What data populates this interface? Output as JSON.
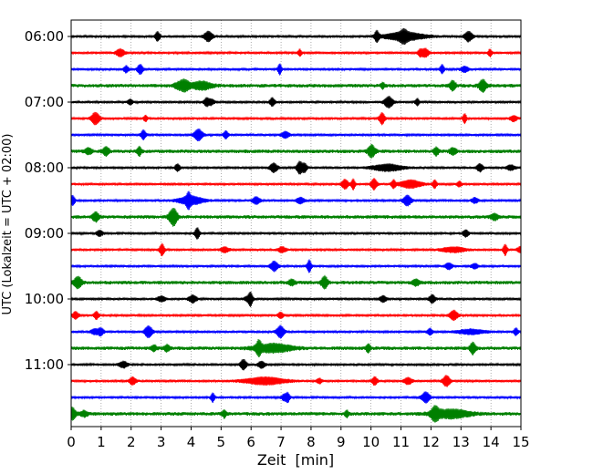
{
  "chart_data": {
    "type": "line",
    "title": "",
    "xlabel": "Zeit  [min]",
    "ylabel": "UTC (Lokalzeit = UTC + 02:00)",
    "xlim": [
      0,
      15
    ],
    "x_ticks": [
      0,
      1,
      2,
      3,
      4,
      5,
      6,
      7,
      8,
      9,
      10,
      11,
      12,
      13,
      14,
      15
    ],
    "x_grid": true,
    "y_tick_labels": [
      "06:00",
      "07:00",
      "08:00",
      "09:00",
      "10:00",
      "11:00"
    ],
    "trace_interval_min": 15,
    "color_cycle": [
      "#000000",
      "#ff0000",
      "#0000ff",
      "#008000"
    ],
    "traces": [
      {
        "start": "06:00",
        "color": "#000000"
      },
      {
        "start": "06:15",
        "color": "#ff0000"
      },
      {
        "start": "06:30",
        "color": "#0000ff"
      },
      {
        "start": "06:45",
        "color": "#008000"
      },
      {
        "start": "07:00",
        "color": "#000000"
      },
      {
        "start": "07:15",
        "color": "#ff0000"
      },
      {
        "start": "07:30",
        "color": "#0000ff"
      },
      {
        "start": "07:45",
        "color": "#008000"
      },
      {
        "start": "08:00",
        "color": "#000000"
      },
      {
        "start": "08:15",
        "color": "#ff0000"
      },
      {
        "start": "08:30",
        "color": "#0000ff"
      },
      {
        "start": "08:45",
        "color": "#008000"
      },
      {
        "start": "09:00",
        "color": "#000000"
      },
      {
        "start": "09:15",
        "color": "#ff0000"
      },
      {
        "start": "09:30",
        "color": "#0000ff"
      },
      {
        "start": "09:45",
        "color": "#008000"
      },
      {
        "start": "10:00",
        "color": "#000000"
      },
      {
        "start": "10:15",
        "color": "#ff0000"
      },
      {
        "start": "10:30",
        "color": "#0000ff"
      },
      {
        "start": "10:45",
        "color": "#008000"
      },
      {
        "start": "11:00",
        "color": "#000000"
      },
      {
        "start": "11:15",
        "color": "#ff0000"
      },
      {
        "start": "11:30",
        "color": "#0000ff"
      },
      {
        "start": "11:45",
        "color": "#008000"
      }
    ]
  }
}
